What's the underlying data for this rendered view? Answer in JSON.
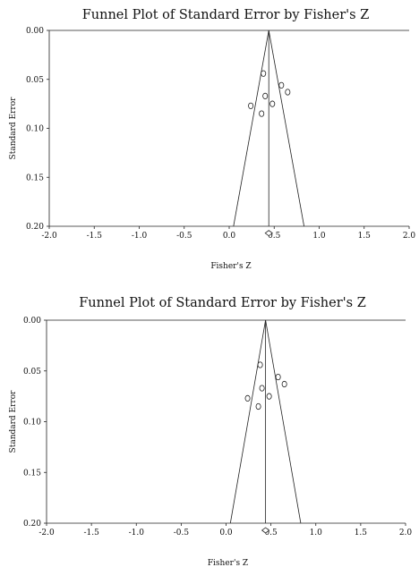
{
  "chart_data": [
    {
      "type": "scatter",
      "title": "Funnel Plot of Standard Error by Fisher's Z",
      "xlabel": "Fisher's Z",
      "ylabel": "Standard Error",
      "xlim": [
        -2.0,
        2.0
      ],
      "ylim": [
        0.0,
        0.2
      ],
      "y_inverted": true,
      "x_ticks": [
        "-2.0",
        "-1.5",
        "-1.0",
        "-0.5",
        "0.0",
        "0.5",
        "1.0",
        "1.5",
        "2.0"
      ],
      "y_ticks": [
        "0.00",
        "0.05",
        "0.10",
        "0.15",
        "0.20"
      ],
      "grid": false,
      "points": [
        {
          "x": 0.38,
          "y": 0.044
        },
        {
          "x": 0.58,
          "y": 0.056
        },
        {
          "x": 0.65,
          "y": 0.063
        },
        {
          "x": 0.4,
          "y": 0.067
        },
        {
          "x": 0.48,
          "y": 0.075
        },
        {
          "x": 0.24,
          "y": 0.077
        },
        {
          "x": 0.36,
          "y": 0.085
        }
      ],
      "pooled_effect": 0.44,
      "pooled_marker_y": 0.207,
      "funnel": {
        "center": 0.44,
        "se_max": 0.2,
        "multiplier": 1.96
      }
    },
    {
      "type": "scatter",
      "title": "Funnel Plot of Standard Error by Fisher's Z",
      "xlabel": "Fisher's Z",
      "ylabel": "Standard Error",
      "xlim": [
        -2.0,
        2.0
      ],
      "ylim": [
        0.0,
        0.2
      ],
      "y_inverted": true,
      "x_ticks": [
        "-2.0",
        "-1.5",
        "-1.0",
        "-0.5",
        "0.0",
        "0.5",
        "1.0",
        "1.5",
        "2.0"
      ],
      "y_ticks": [
        "0.00",
        "0.05",
        "0.10",
        "0.15",
        "0.20"
      ],
      "grid": false,
      "points": [
        {
          "x": 0.38,
          "y": 0.044
        },
        {
          "x": 0.58,
          "y": 0.056
        },
        {
          "x": 0.65,
          "y": 0.063
        },
        {
          "x": 0.4,
          "y": 0.067
        },
        {
          "x": 0.48,
          "y": 0.075
        },
        {
          "x": 0.24,
          "y": 0.077
        },
        {
          "x": 0.36,
          "y": 0.085
        }
      ],
      "pooled_effect": 0.44,
      "pooled_marker_y": 0.207,
      "funnel": {
        "center": 0.44,
        "se_max": 0.2,
        "multiplier": 1.96
      }
    }
  ]
}
